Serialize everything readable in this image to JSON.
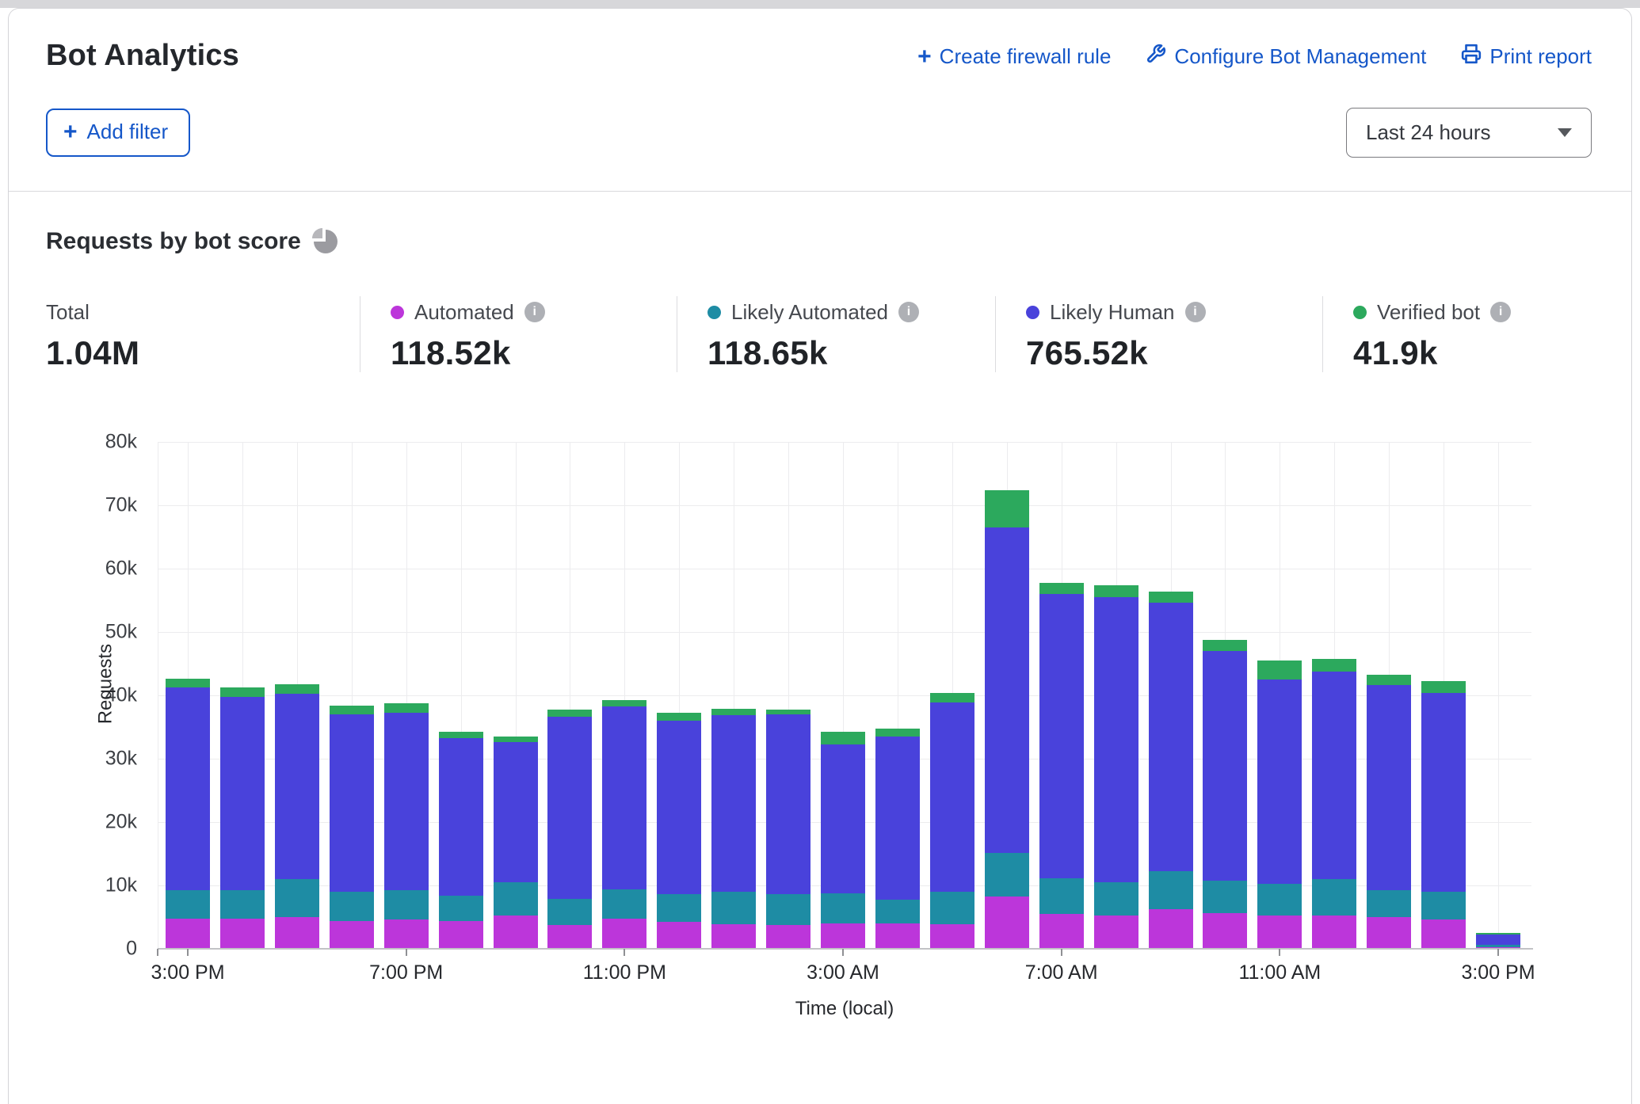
{
  "header": {
    "title": "Bot Analytics",
    "actions": [
      {
        "label": "Create firewall rule",
        "icon": "plus-icon"
      },
      {
        "label": "Configure Bot Management",
        "icon": "wrench-icon"
      },
      {
        "label": "Print report",
        "icon": "printer-icon"
      }
    ],
    "add_filter_label": "Add filter",
    "time_range_selected": "Last 24 hours"
  },
  "section": {
    "title": "Requests by bot score"
  },
  "stats": {
    "total_label": "Total",
    "total_value": "1.04M",
    "items": [
      {
        "label": "Automated",
        "value": "118.52k",
        "color": "#BC36DA"
      },
      {
        "label": "Likely Automated",
        "value": "118.65k",
        "color": "#1E8CA4"
      },
      {
        "label": "Likely Human",
        "value": "765.52k",
        "color": "#4942DB"
      },
      {
        "label": "Verified bot",
        "value": "41.9k",
        "color": "#2CA95D"
      }
    ]
  },
  "colors": {
    "accent_blue": "#1557C9",
    "grid": "#ECECEE",
    "axis": "#C2C3C6"
  },
  "chart_data": {
    "type": "bar",
    "stacked": true,
    "title": "Requests by bot score",
    "xlabel": "Time (local)",
    "ylabel": "Requests",
    "unit": "thousands of requests",
    "ylim": [
      0,
      80
    ],
    "grid": true,
    "legend_position": "top-stats-row",
    "ytick_labels": [
      "0",
      "10k",
      "20k",
      "30k",
      "40k",
      "50k",
      "60k",
      "70k",
      "80k"
    ],
    "x": [
      "3:00 PM",
      "4:00 PM",
      "5:00 PM",
      "6:00 PM",
      "7:00 PM",
      "8:00 PM",
      "9:00 PM",
      "10:00 PM",
      "11:00 PM",
      "12:00 AM",
      "1:00 AM",
      "2:00 AM",
      "3:00 AM",
      "4:00 AM",
      "5:00 AM",
      "6:00 AM",
      "7:00 AM",
      "8:00 AM",
      "9:00 AM",
      "10:00 AM",
      "11:00 AM",
      "12:00 PM",
      "1:00 PM",
      "2:00 PM",
      "3:00 PM"
    ],
    "xtick_indices": [
      0,
      4,
      8,
      12,
      16,
      20,
      24
    ],
    "series": [
      {
        "name": "Automated",
        "color": "#BC36DA",
        "values": [
          4.7,
          4.8,
          5.0,
          4.4,
          4.6,
          4.4,
          5.3,
          3.8,
          4.7,
          4.2,
          3.9,
          3.8,
          4.0,
          4.0,
          3.9,
          8.2,
          5.5,
          5.2,
          6.2,
          5.6,
          5.3,
          5.2,
          5.0,
          4.6,
          0.2
        ]
      },
      {
        "name": "Likely Automated",
        "color": "#1E8CA4",
        "values": [
          4.6,
          4.4,
          6.0,
          4.6,
          4.7,
          4.0,
          5.2,
          4.1,
          4.7,
          4.4,
          5.1,
          4.8,
          4.8,
          3.7,
          5.1,
          6.9,
          5.6,
          5.3,
          6.0,
          5.2,
          4.9,
          5.8,
          4.3,
          4.4,
          0.4
        ]
      },
      {
        "name": "Likely Human",
        "color": "#4942DB",
        "values": [
          32.0,
          30.6,
          29.2,
          28.0,
          28.0,
          24.8,
          22.1,
          28.7,
          28.8,
          27.4,
          27.9,
          28.4,
          23.4,
          25.8,
          29.9,
          51.4,
          44.9,
          45.0,
          42.4,
          36.2,
          32.3,
          32.8,
          32.3,
          31.4,
          1.7
        ]
      },
      {
        "name": "Verified bot",
        "color": "#2CA95D",
        "values": [
          1.3,
          1.4,
          1.5,
          1.4,
          1.4,
          1.1,
          0.9,
          1.1,
          1.0,
          1.2,
          1.0,
          0.8,
          2.0,
          1.2,
          1.5,
          5.9,
          1.8,
          1.9,
          1.8,
          1.8,
          3.0,
          1.9,
          1.7,
          1.8,
          0.2
        ]
      }
    ]
  }
}
